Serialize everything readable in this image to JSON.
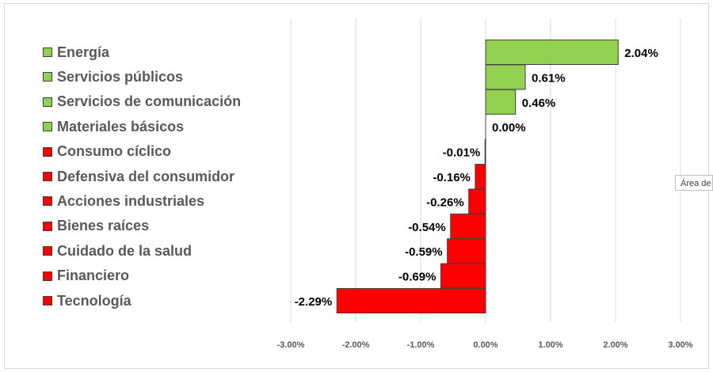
{
  "chart_data": {
    "type": "bar",
    "orientation": "horizontal",
    "categories": [
      "Energía",
      "Servicios públicos",
      "Servicios de comunicación",
      "Materiales básicos",
      "Consumo cíclico",
      "Defensiva del consumidor",
      "Acciones industriales",
      "Bienes raíces",
      "Cuidado de la salud",
      "Financiero",
      "Tecnología"
    ],
    "values": [
      2.04,
      0.61,
      0.46,
      0.0,
      -0.01,
      -0.16,
      -0.26,
      -0.54,
      -0.59,
      -0.69,
      -2.29
    ],
    "data_labels": [
      "2.04%",
      "0.61%",
      "0.46%",
      "0.00%",
      "-0.01%",
      "-0.16%",
      "-0.26%",
      "-0.54%",
      "-0.59%",
      "-0.69%",
      "-2.29%"
    ],
    "xlim": [
      -3,
      3
    ],
    "x_ticks": [
      -3,
      -2,
      -1,
      0,
      1,
      2,
      3
    ],
    "x_tick_labels": [
      "-3.00%",
      "-2.00%",
      "-1.00%",
      "0.00%",
      "1.00%",
      "2.00%",
      "3.00%"
    ],
    "gridlines": "vertical",
    "legend": "left",
    "colors": {
      "positive": "#92d050",
      "negative": "#ff0000",
      "border": "#404040"
    },
    "title": "",
    "xlabel": "",
    "ylabel": ""
  },
  "tooltip": {
    "text": "Área de t"
  }
}
